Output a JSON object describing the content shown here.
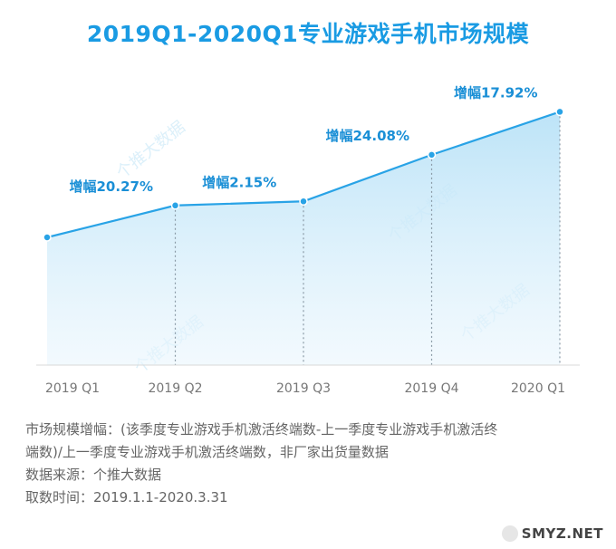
{
  "title": "2019Q1-2020Q1专业游戏手机市场规模",
  "chart_data": {
    "type": "area",
    "categories": [
      "2019 Q1",
      "2019 Q2",
      "2019 Q3",
      "2019 Q4",
      "2020 Q1"
    ],
    "series": [
      {
        "values": [
          100,
          120.27,
          122.86,
          152.44,
          179.76
        ]
      }
    ],
    "annotations": [
      "增幅20.27%",
      "增幅2.15%",
      "增幅24.08%",
      "增幅17.92%"
    ],
    "line_color": "#29a3e6",
    "label_color": "#1a8fd6",
    "grid": false
  },
  "notes": [
    "市场规模增幅：(该季度专业游戏手机激活终端数-上一季度专业游戏手机激活终",
    "端数)/上一季度专业游戏手机激活终端数，非厂家出货量数据",
    "数据来源：个推大数据",
    "取数时间：2019.1.1-2020.3.31"
  ],
  "watermark": "个推大数据",
  "site_mark": "SMYZ.NET"
}
